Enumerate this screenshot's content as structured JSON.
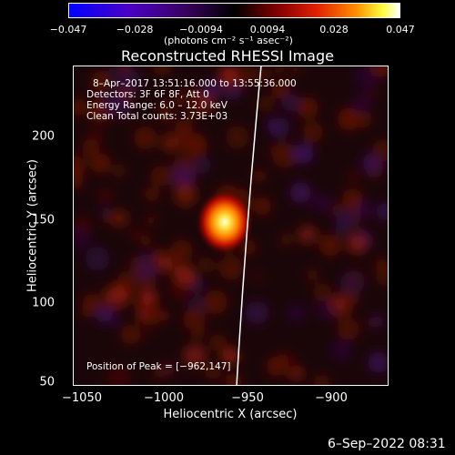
{
  "colorbar": {
    "ticks": [
      "−0.047",
      "−0.028",
      "−0.0094",
      "0.0094",
      "0.028",
      "0.047"
    ],
    "unit": "(photons cm⁻² s⁻¹ asec⁻²)"
  },
  "title": "Reconstructed RHESSI Image",
  "info": {
    "line1": "8–Apr–2017 13:51:16.000 to 13:55:36.000",
    "line2": "Detectors: 3F 6F 8F, Att 0",
    "line3": "Energy Range: 6.0 – 12.0 keV",
    "line4": "Clean    Total counts: 3.73E+03",
    "peak": "Position of Peak = [−962,147]"
  },
  "axes": {
    "xlabel": "Heliocentric X (arcsec)",
    "ylabel": "Heliocentric Y (arcsec)",
    "xticks": [
      "−1050",
      "−1000",
      "−950",
      "−900"
    ],
    "yticks": [
      "200",
      "150",
      "100",
      "50"
    ]
  },
  "footer_date": "6–Sep–2022 08:31"
}
